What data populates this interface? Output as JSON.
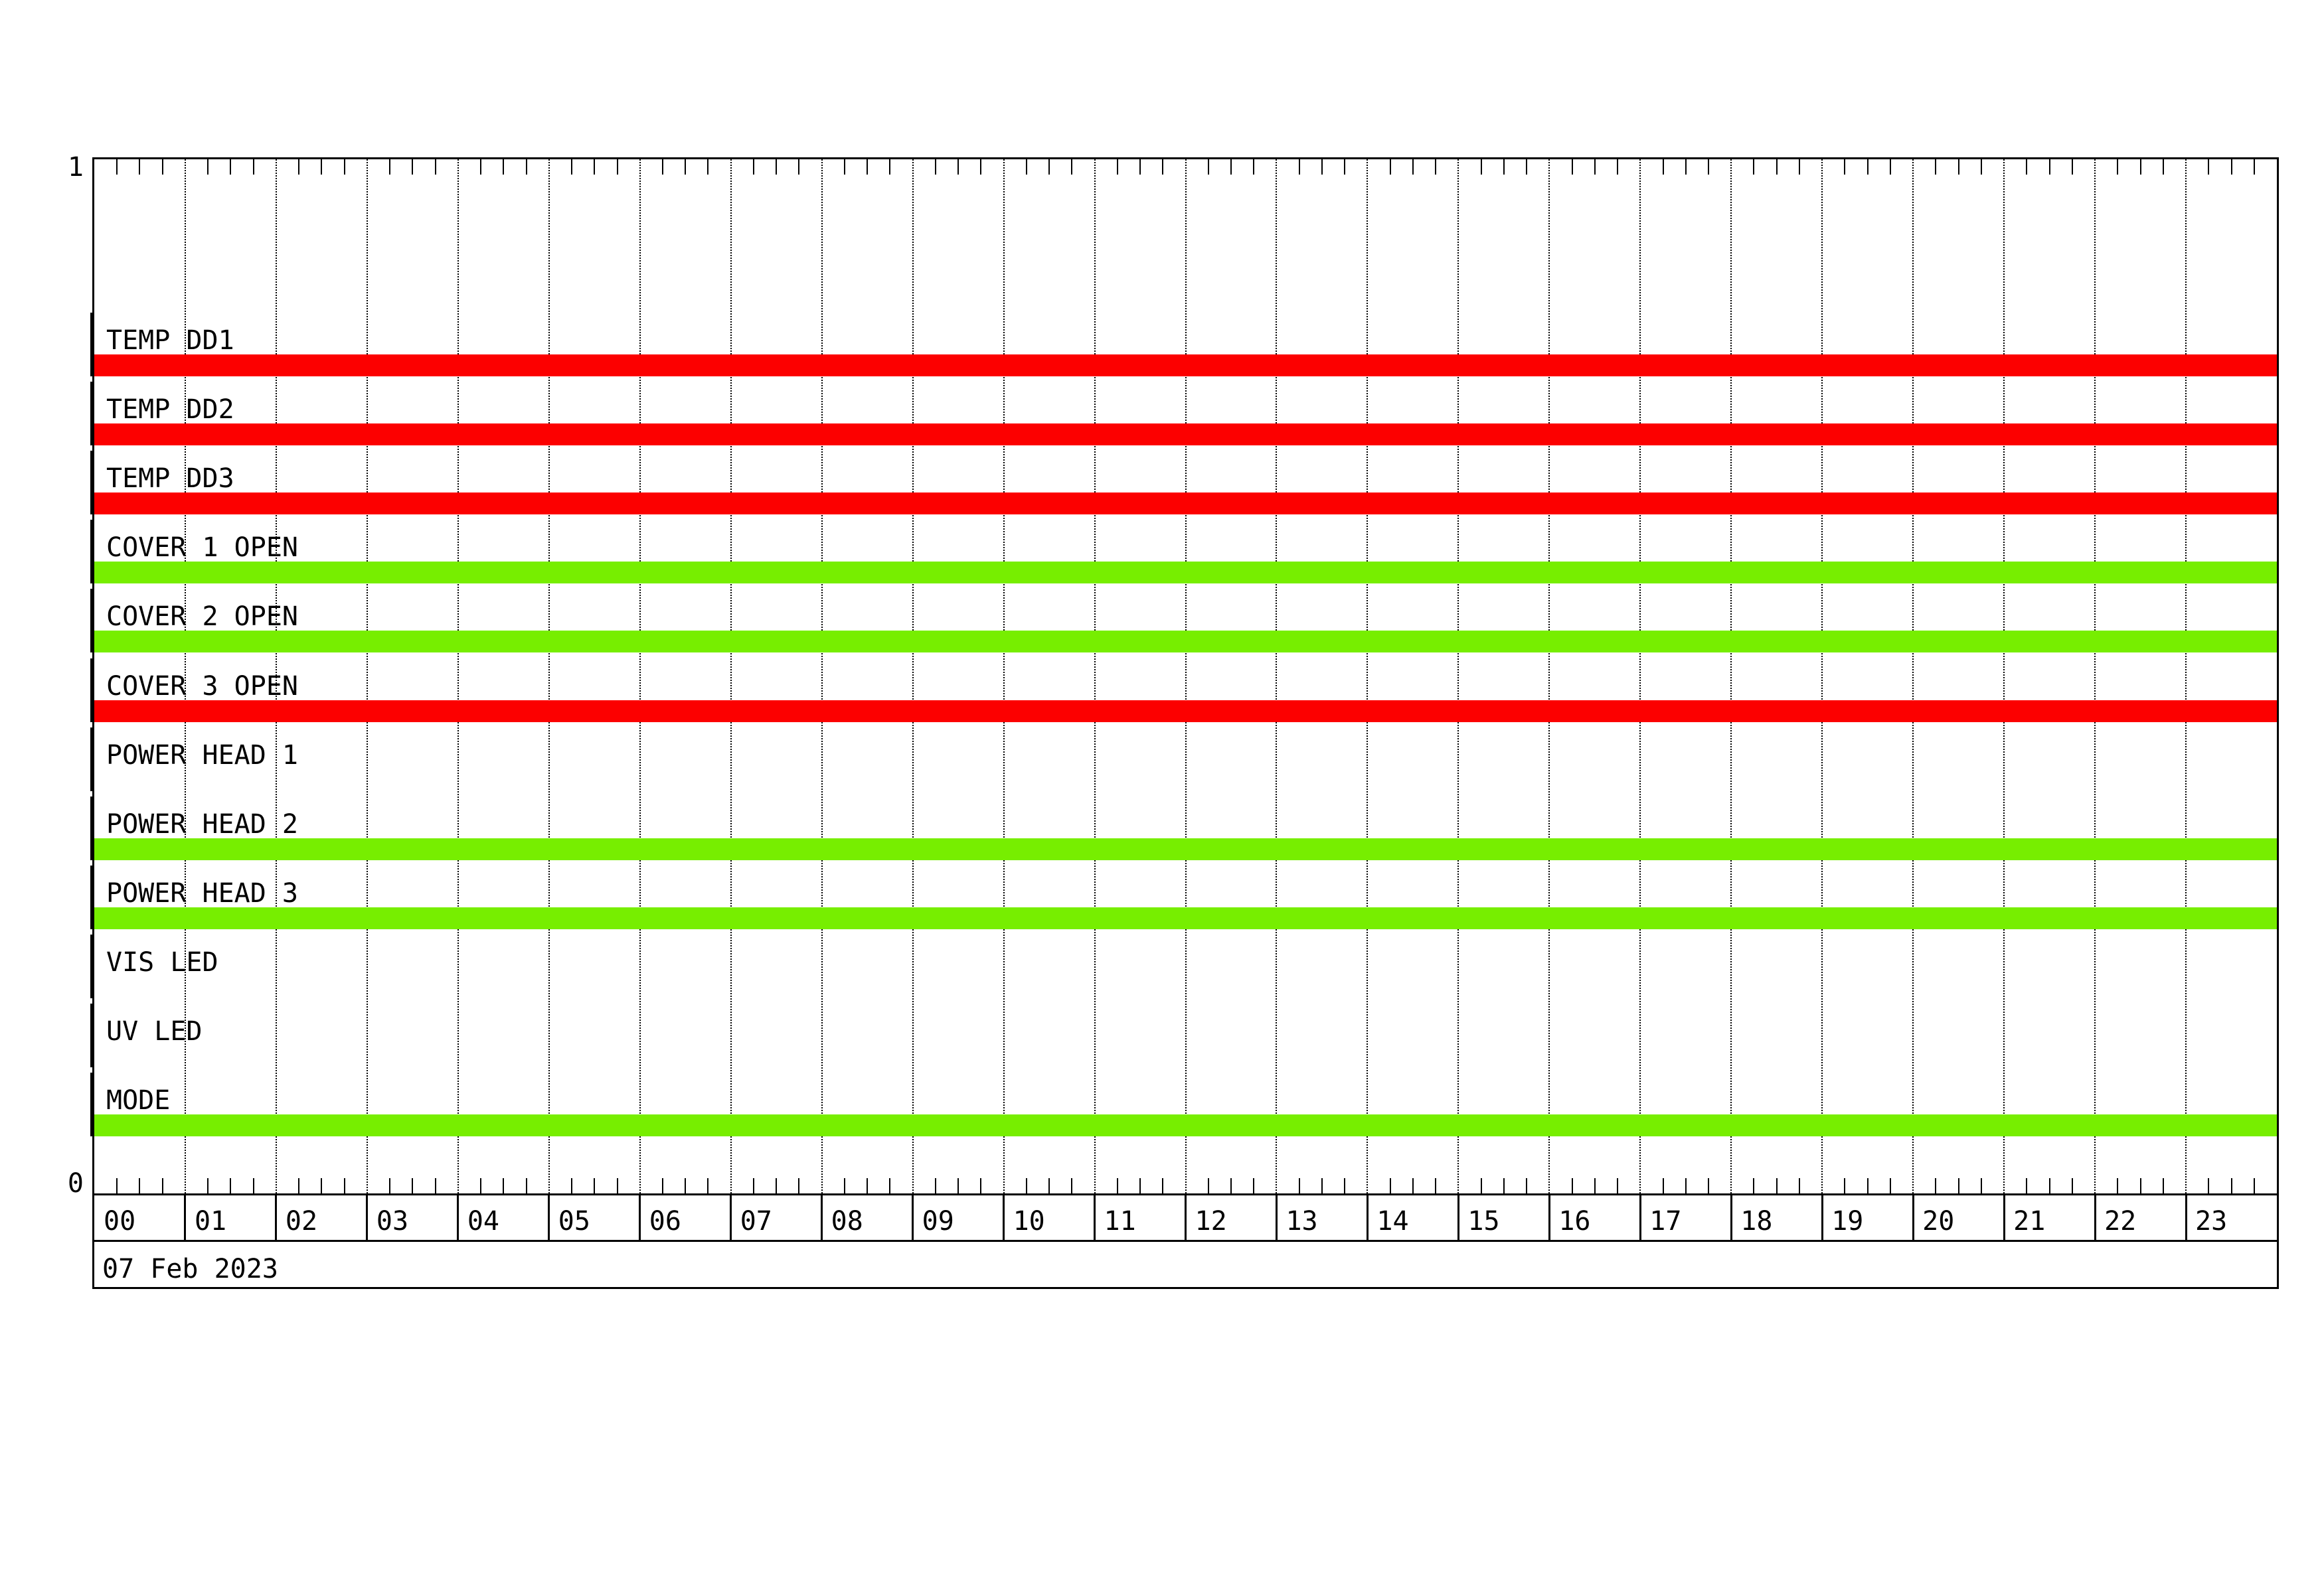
{
  "chart_data": {
    "type": "timeline",
    "title": "",
    "date": "07 Feb 2023",
    "y_axis": {
      "top_label": "1",
      "bottom_label": "0"
    },
    "x_axis": {
      "unit": "hour of day",
      "hours": [
        "00",
        "01",
        "02",
        "03",
        "04",
        "05",
        "06",
        "07",
        "08",
        "09",
        "10",
        "11",
        "12",
        "13",
        "14",
        "15",
        "16",
        "17",
        "18",
        "19",
        "20",
        "21",
        "22",
        "23"
      ],
      "minor_ticks_per_hour": 4,
      "range": [
        "00:00",
        "24:00"
      ]
    },
    "palette": {
      "ok_green": "#77ee00",
      "alert_red": "#fc0000",
      "line_black": "#000000"
    },
    "rows": [
      {
        "label": "TEMP DD1",
        "status": 1,
        "color_key": "alert_red",
        "intervals": [
          [
            "00:00",
            "24:00"
          ]
        ]
      },
      {
        "label": "TEMP DD2",
        "status": 1,
        "color_key": "alert_red",
        "intervals": [
          [
            "00:00",
            "24:00"
          ]
        ]
      },
      {
        "label": "TEMP DD3",
        "status": 1,
        "color_key": "alert_red",
        "intervals": [
          [
            "00:00",
            "24:00"
          ]
        ]
      },
      {
        "label": "COVER 1 OPEN",
        "status": 1,
        "color_key": "ok_green",
        "intervals": [
          [
            "00:00",
            "24:00"
          ]
        ]
      },
      {
        "label": "COVER 2 OPEN",
        "status": 1,
        "color_key": "ok_green",
        "intervals": [
          [
            "00:00",
            "24:00"
          ]
        ]
      },
      {
        "label": "COVER 3 OPEN",
        "status": 1,
        "color_key": "alert_red",
        "intervals": [
          [
            "00:00",
            "24:00"
          ]
        ]
      },
      {
        "label": "POWER HEAD 1",
        "status": 0,
        "color_key": null,
        "intervals": []
      },
      {
        "label": "POWER HEAD 2",
        "status": 1,
        "color_key": "ok_green",
        "intervals": [
          [
            "00:00",
            "24:00"
          ]
        ]
      },
      {
        "label": "POWER HEAD 3",
        "status": 1,
        "color_key": "ok_green",
        "intervals": [
          [
            "00:00",
            "24:00"
          ]
        ]
      },
      {
        "label": "VIS LED",
        "status": 0,
        "color_key": null,
        "intervals": []
      },
      {
        "label": "UV LED",
        "status": 0,
        "color_key": null,
        "intervals": []
      },
      {
        "label": "MODE",
        "status": 1,
        "color_key": "ok_green",
        "intervals": [
          [
            "00:00",
            "24:00"
          ]
        ]
      }
    ]
  }
}
